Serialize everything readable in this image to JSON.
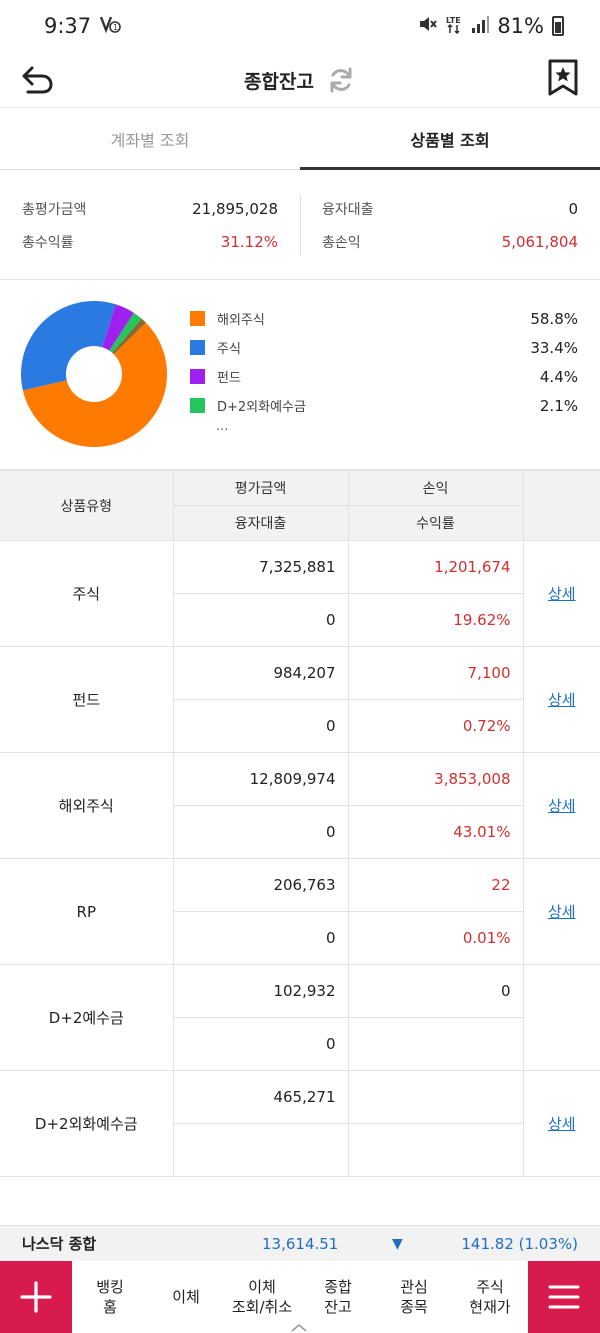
{
  "status": {
    "time": "9:37",
    "battery": "81%",
    "left_icons": [
      "notification-icon"
    ],
    "right_icons": [
      "mute-icon",
      "lte-icon",
      "signal-icon",
      "battery-icon"
    ]
  },
  "header": {
    "title": "종합잔고"
  },
  "tabs": [
    {
      "label": "계좌별 조회",
      "active": false
    },
    {
      "label": "상품별 조회",
      "active": true
    }
  ],
  "summary": {
    "total_eval_label": "총평가금액",
    "total_eval_value": "21,895,028",
    "loan_label": "융자대출",
    "loan_value": "0",
    "total_return_label": "총수익률",
    "total_return_value": "31.12%",
    "total_pnl_label": "총손익",
    "total_pnl_value": "5,061,804"
  },
  "allocation": {
    "items": [
      {
        "name": "해외주식",
        "pct": "58.8%",
        "value": 58.8,
        "color": "#ff7a00"
      },
      {
        "name": "주식",
        "pct": "33.4%",
        "value": 33.4,
        "color": "#2a7ae2"
      },
      {
        "name": "펀드",
        "pct": "4.4%",
        "value": 4.4,
        "color": "#a020f0"
      },
      {
        "name": "D+2외화예수금",
        "pct": "2.1%",
        "value": 2.1,
        "color": "#22c55e"
      }
    ],
    "other_value": 1.3,
    "other_color": "#8a6b2f",
    "more": "..."
  },
  "table": {
    "headers": {
      "type": "상품유형",
      "eval": "평가금액",
      "pnl": "손익",
      "loan": "융자대출",
      "return": "수익률"
    },
    "detail_label": "상세",
    "rows": [
      {
        "type": "주식",
        "eval": "7,325,881",
        "pnl": "1,201,674",
        "loan": "0",
        "return": "19.62%",
        "red": true,
        "detail": true
      },
      {
        "type": "펀드",
        "eval": "984,207",
        "pnl": "7,100",
        "loan": "0",
        "return": "0.72%",
        "red": true,
        "detail": true
      },
      {
        "type": "해외주식",
        "eval": "12,809,974",
        "pnl": "3,853,008",
        "loan": "0",
        "return": "43.01%",
        "red": true,
        "detail": true
      },
      {
        "type": "RP",
        "eval": "206,763",
        "pnl": "22",
        "loan": "0",
        "return": "0.01%",
        "red": true,
        "detail": true
      },
      {
        "type": "D+2예수금",
        "eval": "102,932",
        "pnl": "0",
        "loan": "0",
        "return": "",
        "red": false,
        "detail": false
      },
      {
        "type": "D+2외화예수금",
        "eval": "465,271",
        "pnl": "",
        "loan": "",
        "return": "",
        "red": false,
        "detail": true
      }
    ]
  },
  "ticker": {
    "name": "나스닥 종합",
    "value": "13,614.51",
    "change": "141.82 (1.03%)",
    "direction": "down"
  },
  "bottom_nav": {
    "items": [
      {
        "label": "뱅킹\n홈"
      },
      {
        "label": "이체"
      },
      {
        "label": "이체\n조회/취소"
      },
      {
        "label": "종합\n잔고"
      },
      {
        "label": "관심\n종목"
      },
      {
        "label": "주식\n현재가"
      }
    ]
  }
}
